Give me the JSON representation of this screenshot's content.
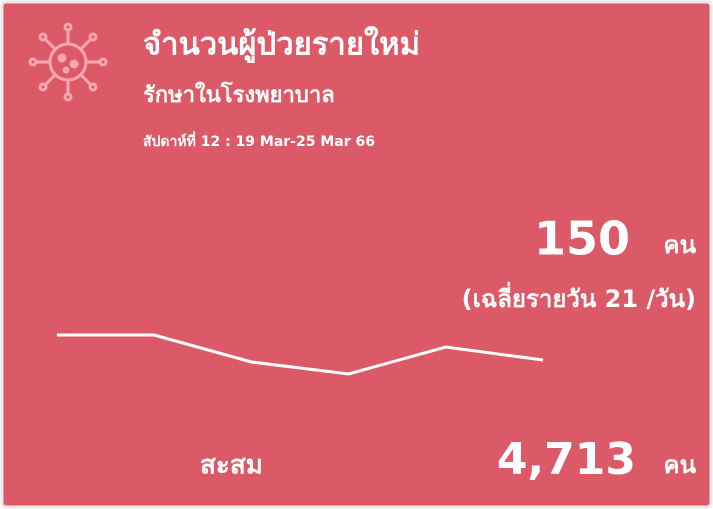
{
  "header": {
    "title": "จำนวนผู้ป่วยรายใหม่",
    "subtitle": "รักษาในโรงพยาบาล",
    "period": "สัปดาห์ที่ 12 : 19 Mar-25 Mar 66"
  },
  "weekly": {
    "value": "150",
    "unit": "คน",
    "average": "(เฉลี่ยรายวัน 21 /วัน)"
  },
  "cumulative": {
    "label": "สะสม",
    "value": "4,713",
    "unit": "คน"
  },
  "sparkline": {
    "type": "line",
    "values": [
      175,
      175,
      148,
      136,
      163,
      150
    ],
    "ylim": [
      100,
      200
    ],
    "color": "#ffffff"
  }
}
